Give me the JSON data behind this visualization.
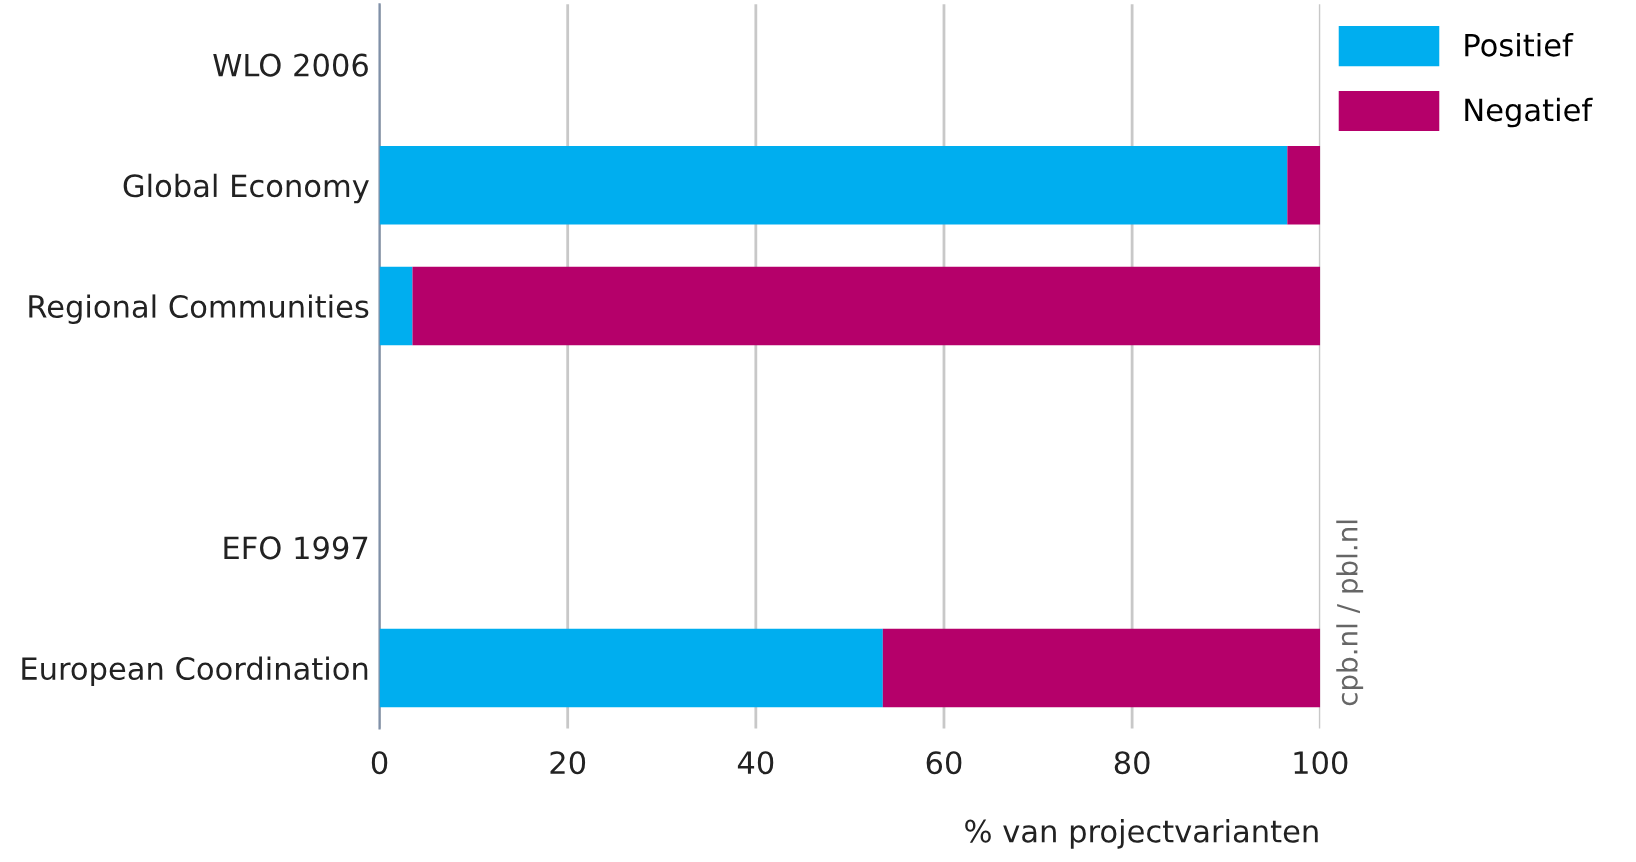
{
  "chart_data": {
    "type": "bar",
    "orientation": "horizontal",
    "stacked": true,
    "categories": [
      "WLO 2006",
      "Global Economy",
      "Regional Communities",
      null,
      "EFO 1997",
      "European Coordination"
    ],
    "series": [
      {
        "name": "Positief",
        "color": "#00aeef",
        "values": [
          null,
          96.5,
          3.5,
          null,
          null,
          53.5
        ]
      },
      {
        "name": "Negatief",
        "color": "#b5006a",
        "values": [
          null,
          3.5,
          96.5,
          null,
          null,
          46.5
        ]
      }
    ],
    "xlim": [
      0,
      100
    ],
    "xticks": [
      0,
      20,
      40,
      60,
      80,
      100
    ],
    "xlabel": "% van projectvarianten",
    "grid": "x",
    "legend": "top right",
    "annotations": [
      "cpb.nl / pbl.nl"
    ]
  }
}
